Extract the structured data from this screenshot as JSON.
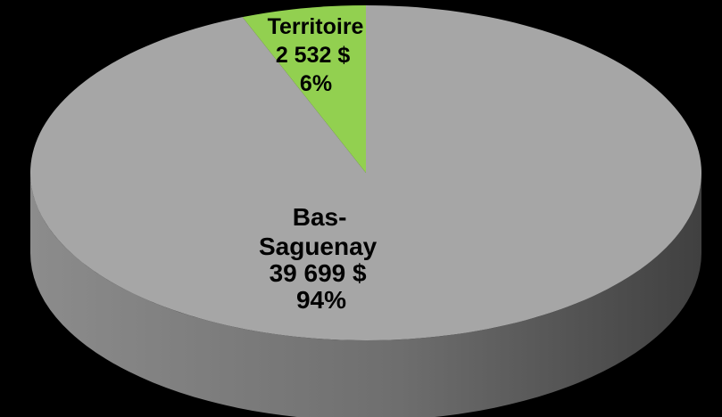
{
  "chart_data": {
    "type": "pie",
    "style": "3d",
    "title": "",
    "currency_symbol": "$",
    "slices": [
      {
        "name": "Bas-Saguenay",
        "label_lines": [
          "Bas-",
          "Saguenay"
        ],
        "value": 39699,
        "value_text": "39 699 $",
        "percent": 94,
        "percent_text": "94%",
        "color": "#a6a6a6"
      },
      {
        "name": "Territoire",
        "label_lines": [
          "Territoire"
        ],
        "value": 2532,
        "value_text": "2 532 $",
        "percent": 6,
        "percent_text": "6%",
        "color": "#92d050"
      }
    ],
    "side_color_light": "#8c8c8c",
    "side_color_dark": "#404040",
    "background": "#000000"
  }
}
